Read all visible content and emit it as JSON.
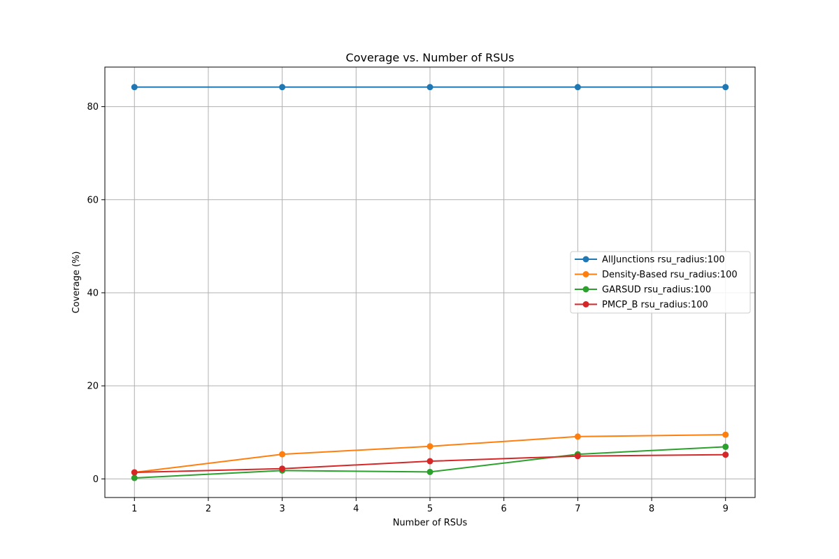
{
  "chart_data": {
    "type": "line",
    "title": "Coverage vs. Number of RSUs",
    "xlabel": "Number of RSUs",
    "ylabel": "Coverage (%)",
    "xlim": [
      0.6,
      9.4
    ],
    "ylim": [
      -4,
      88.5
    ],
    "xticks": [
      1,
      2,
      3,
      4,
      5,
      6,
      7,
      8,
      9
    ],
    "yticks": [
      0,
      20,
      40,
      60,
      80
    ],
    "grid": true,
    "legend_position": "center-right",
    "x": [
      1,
      3,
      5,
      7,
      9
    ],
    "series": [
      {
        "name": "AllJunctions rsu_radius:100",
        "color": "#1f77b4",
        "values": [
          84.2,
          84.2,
          84.2,
          84.2,
          84.2
        ]
      },
      {
        "name": "Density-Based rsu_radius:100",
        "color": "#ff7f0e",
        "values": [
          1.4,
          5.3,
          7.0,
          9.1,
          9.5
        ]
      },
      {
        "name": "GARSUD rsu_radius:100",
        "color": "#2ca02c",
        "values": [
          0.2,
          1.8,
          1.5,
          5.3,
          6.9
        ]
      },
      {
        "name": "PMCP_B rsu_radius:100",
        "color": "#d62728",
        "values": [
          1.4,
          2.2,
          3.8,
          4.9,
          5.2
        ]
      }
    ]
  }
}
